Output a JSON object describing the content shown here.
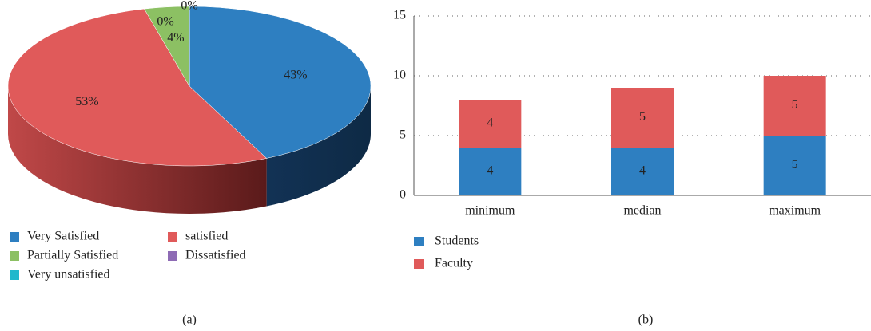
{
  "chart_data": [
    {
      "type": "pie",
      "caption": "(a)",
      "categories": [
        "Very Satisfied",
        "satisfied",
        "Partially Satisfied",
        "Dissatisfied",
        "Very unsatisfied"
      ],
      "values": [
        43,
        53,
        4,
        0,
        0
      ],
      "value_labels": [
        "43%",
        "53%",
        "4%",
        "0%",
        "0%"
      ],
      "colors": [
        "#2e7fc1",
        "#e05a5a",
        "#8cc063",
        "#8e6bb5",
        "#1fb8cc"
      ]
    },
    {
      "type": "bar",
      "caption": "(b)",
      "stacked": true,
      "categories": [
        "minimum",
        "median",
        "maximum"
      ],
      "series": [
        {
          "name": "Students",
          "color": "#2e7fc1",
          "values": [
            4,
            4,
            5
          ]
        },
        {
          "name": "Faculty",
          "color": "#e05a5a",
          "values": [
            4,
            5,
            5
          ]
        }
      ],
      "ylim": [
        0,
        15
      ],
      "yticks": [
        0,
        5,
        10,
        15
      ],
      "grid": true
    }
  ]
}
